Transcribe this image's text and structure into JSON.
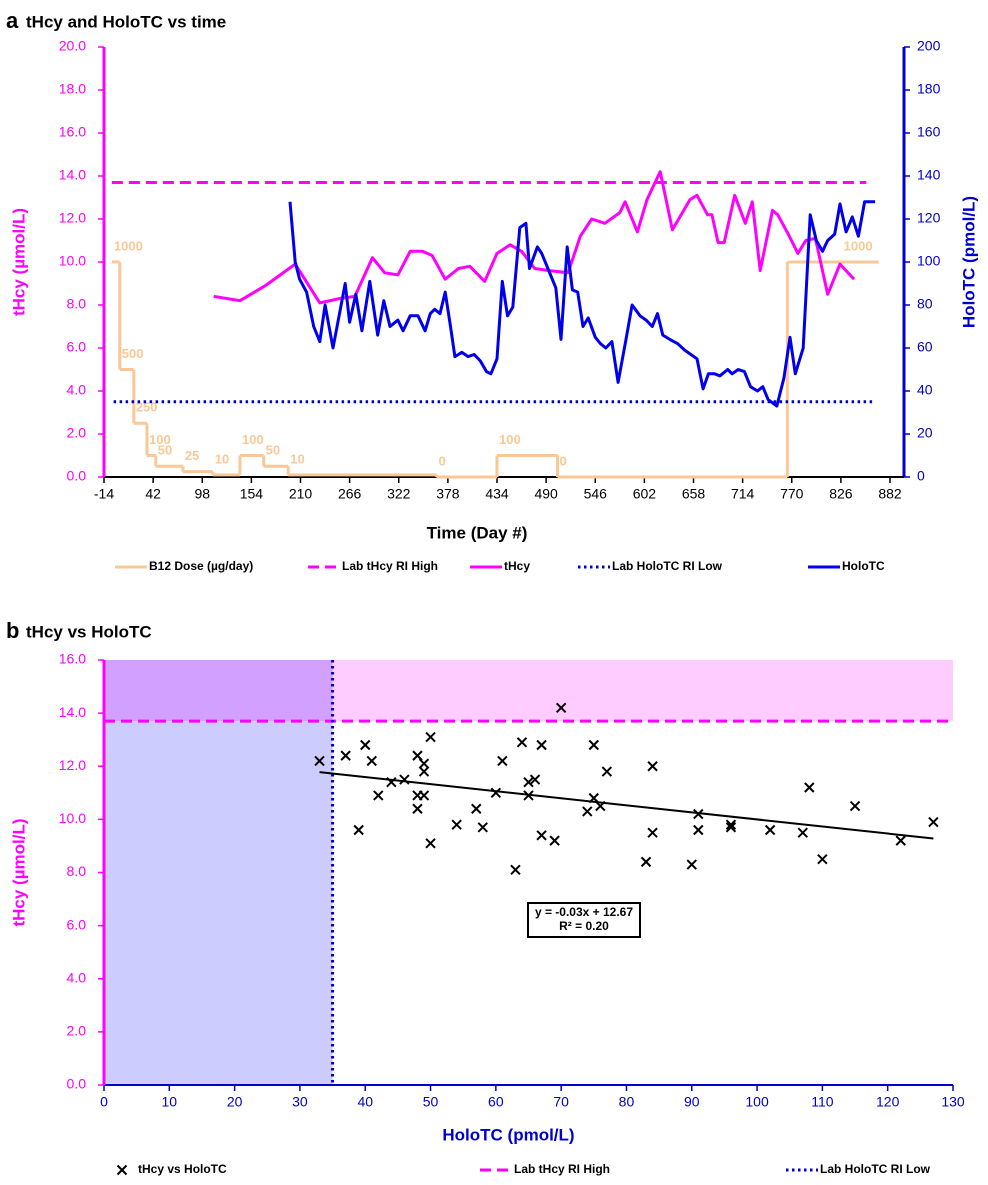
{
  "chart_data": [
    {
      "type": "line",
      "panel": "a",
      "title": "tHcy and HoloTC vs time",
      "x_label": "Time (Day #)",
      "y_label": "tHcy (µmol/L)",
      "y2_label": "HoloTC (pmol/L)",
      "x_axis_color": "#000000",
      "y_axis_color": "#ff00ff",
      "y2_axis_color": "#0000cc",
      "xlim": [
        -14,
        882
      ],
      "xticks": [
        -14,
        42,
        98,
        154,
        210,
        266,
        322,
        378,
        434,
        490,
        546,
        602,
        658,
        714,
        770,
        826,
        882
      ],
      "ylim": [
        0,
        20
      ],
      "yticks": [
        {
          "value": 0,
          "label": "0.0"
        },
        {
          "value": 2,
          "label": "2.0"
        },
        {
          "value": 4,
          "label": "4.0"
        },
        {
          "value": 6,
          "label": "6.0"
        },
        {
          "value": 8,
          "label": "8.0"
        },
        {
          "value": 10,
          "label": "10.0"
        },
        {
          "value": 12,
          "label": "12.0"
        },
        {
          "value": 14,
          "label": "14.0"
        },
        {
          "value": 16,
          "label": "16.0"
        },
        {
          "value": 18,
          "label": "18.0"
        },
        {
          "value": 20,
          "label": "20.0"
        }
      ],
      "y2lim": [
        0,
        200
      ],
      "y2ticks": [
        0,
        20,
        40,
        60,
        80,
        100,
        120,
        140,
        160,
        180,
        200
      ],
      "grid": false,
      "series": [
        {
          "name": "B12 Dose (µg/day)",
          "color": "#f9c896",
          "style": "solid",
          "step": "post",
          "x": [
            -5,
            4,
            20,
            35,
            45,
            76,
            110,
            141,
            168,
            196,
            365,
            434,
            503,
            765,
            869
          ],
          "values": [
            10,
            5,
            2.5,
            1,
            0.5,
            0.25,
            0.1,
            1,
            0.5,
            0.1,
            0,
            1,
            0,
            10,
            10
          ],
          "value_labels": [
            "1000",
            "500",
            "250",
            "100",
            "50",
            "25",
            "10",
            "100",
            "50",
            "10",
            "0",
            "100",
            "0",
            null,
            "1000"
          ]
        },
        {
          "name": "Lab tHcy RI High",
          "color": "#ff00ff",
          "style": "dashed",
          "x": [
            -5,
            855
          ],
          "values": [
            13.7,
            13.7
          ]
        },
        {
          "name": "tHcy",
          "color": "#ff00ff",
          "style": "solid",
          "x": [
            111,
            141,
            170,
            204,
            232,
            255,
            272,
            292,
            306,
            321,
            335,
            349,
            360,
            375,
            390,
            403,
            420,
            434,
            449,
            462,
            477,
            494,
            515,
            529,
            542,
            557,
            574,
            580,
            594,
            605,
            620,
            634,
            654,
            662,
            674,
            679,
            686,
            693,
            705,
            717,
            725,
            734,
            748,
            754,
            766,
            777,
            786,
            797,
            811,
            825,
            841
          ],
          "values": [
            8.4,
            8.2,
            8.9,
            9.9,
            8.1,
            8.3,
            8.4,
            10.2,
            9.5,
            9.4,
            10.5,
            10.5,
            10.3,
            9.2,
            9.7,
            9.8,
            9.1,
            10.4,
            10.8,
            10.5,
            9.7,
            9.6,
            9.5,
            11.2,
            12.0,
            11.8,
            12.3,
            12.8,
            11.4,
            12.9,
            14.2,
            11.5,
            12.9,
            13.1,
            12.2,
            12.2,
            10.9,
            10.9,
            13.1,
            11.8,
            12.8,
            9.6,
            12.4,
            12.2,
            11.3,
            10.4,
            11.0,
            11.1,
            8.5,
            9.9,
            9.2
          ]
        },
        {
          "name": "Lab HoloTC RI Low",
          "color": "#0000cc",
          "style": "dotted",
          "axis": "y2",
          "x": [
            -3,
            865
          ],
          "values": [
            35,
            35
          ]
        },
        {
          "name": "HoloTC",
          "color": "#0000ee",
          "style": "solid",
          "axis": "y2",
          "x": [
            198,
            204,
            209,
            217,
            225,
            232,
            238,
            247,
            261,
            266,
            273,
            280,
            289,
            298,
            305,
            312,
            321,
            327,
            335,
            344,
            352,
            358,
            363,
            369,
            375,
            381,
            386,
            394,
            401,
            408,
            415,
            422,
            427,
            434,
            440,
            446,
            452,
            460,
            467,
            471,
            480,
            485,
            492,
            501,
            507,
            514,
            520,
            526,
            532,
            538,
            546,
            552,
            558,
            565,
            572,
            581,
            588,
            597,
            604,
            611,
            617,
            623,
            631,
            640,
            648,
            662,
            669,
            675,
            682,
            688,
            697,
            702,
            709,
            716,
            723,
            731,
            737,
            743,
            753,
            761,
            768,
            774,
            783,
            791,
            798,
            805,
            811,
            819,
            825,
            832,
            839,
            846,
            853,
            865
          ],
          "values": [
            128,
            100,
            92,
            86,
            70,
            63,
            80,
            60,
            90,
            72,
            85,
            68,
            91,
            66,
            82,
            70,
            73,
            68,
            75,
            75,
            68,
            76,
            78,
            76,
            86,
            70,
            56,
            58,
            56,
            57,
            54,
            49,
            48,
            55,
            91,
            75,
            79,
            116,
            118,
            97,
            107,
            104,
            97,
            88,
            64,
            107,
            87,
            86,
            70,
            74,
            65,
            62,
            60,
            63,
            44,
            64,
            80,
            75,
            73,
            70,
            76,
            66,
            64,
            62,
            59,
            55,
            41,
            48,
            48,
            47,
            50,
            48,
            50,
            49,
            42,
            40,
            42,
            36,
            33,
            46,
            65,
            48,
            60,
            122,
            110,
            105,
            110,
            113,
            127,
            114,
            121,
            112,
            128,
            128
          ]
        }
      ]
    },
    {
      "type": "scatter",
      "panel": "b",
      "title": "tHcy vs HoloTC",
      "x_label": "HoloTC (pmol/L)",
      "y_label": "tHcy (µmol/L)",
      "x_axis_color": "#0000cc",
      "y_axis_color": "#ff00ff",
      "xlim": [
        0,
        130
      ],
      "xticks": [
        0,
        10,
        20,
        30,
        40,
        50,
        60,
        70,
        80,
        90,
        100,
        110,
        120,
        130
      ],
      "ylim": [
        0,
        16
      ],
      "yticks": [
        {
          "value": 0,
          "label": "0.0"
        },
        {
          "value": 2,
          "label": "2.0"
        },
        {
          "value": 4,
          "label": "4.0"
        },
        {
          "value": 6,
          "label": "6.0"
        },
        {
          "value": 8,
          "label": "8.0"
        },
        {
          "value": 10,
          "label": "10.0"
        },
        {
          "value": 12,
          "label": "12.0"
        },
        {
          "value": 14,
          "label": "14.0"
        },
        {
          "value": 16,
          "label": "16.0"
        }
      ],
      "grid": false,
      "series": [
        {
          "name": "tHcy vs HoloTC",
          "color": "#000000",
          "marker": "x",
          "x": [
            33,
            37,
            39,
            40,
            41,
            42,
            44,
            46,
            48,
            48,
            48,
            49,
            49,
            49,
            50,
            50,
            54,
            57,
            58,
            60,
            61,
            63,
            64,
            65,
            65,
            66,
            67,
            67,
            69,
            70,
            74,
            75,
            75,
            76,
            77,
            83,
            84,
            84,
            90,
            91,
            91,
            96,
            96,
            102,
            107,
            108,
            110,
            115,
            122,
            127
          ],
          "values": [
            12.2,
            12.4,
            9.6,
            12.8,
            12.2,
            10.9,
            11.4,
            11.5,
            12.4,
            10.9,
            10.4,
            12.1,
            11.8,
            10.9,
            13.1,
            9.1,
            9.8,
            10.4,
            9.7,
            11.0,
            12.2,
            8.1,
            12.9,
            11.4,
            10.9,
            11.5,
            12.8,
            9.4,
            9.2,
            14.2,
            10.3,
            12.8,
            10.8,
            10.5,
            11.8,
            8.4,
            12.0,
            9.5,
            8.3,
            10.2,
            9.6,
            9.8,
            9.7,
            9.6,
            9.5,
            11.2,
            8.5,
            10.5,
            9.2,
            9.9
          ]
        }
      ],
      "reference_lines": [
        {
          "name": "Lab tHcy RI High",
          "axis": "y",
          "value": 13.7,
          "color": "#ff00ff",
          "style": "dashed"
        },
        {
          "name": "Lab HoloTC RI Low",
          "axis": "x",
          "value": 35,
          "color": "#0000cc",
          "style": "dotted"
        }
      ],
      "shading": {
        "above_y_line": "#ffccff",
        "below_x_line": "#ccccff",
        "overlap": "#d2a0ff"
      },
      "trendline": {
        "x": [
          33,
          127
        ],
        "values": [
          11.78,
          9.28
        ],
        "color": "#000000",
        "equation": "y = -0.03x + 12.67",
        "r_squared": "R² = 0.20"
      }
    }
  ]
}
